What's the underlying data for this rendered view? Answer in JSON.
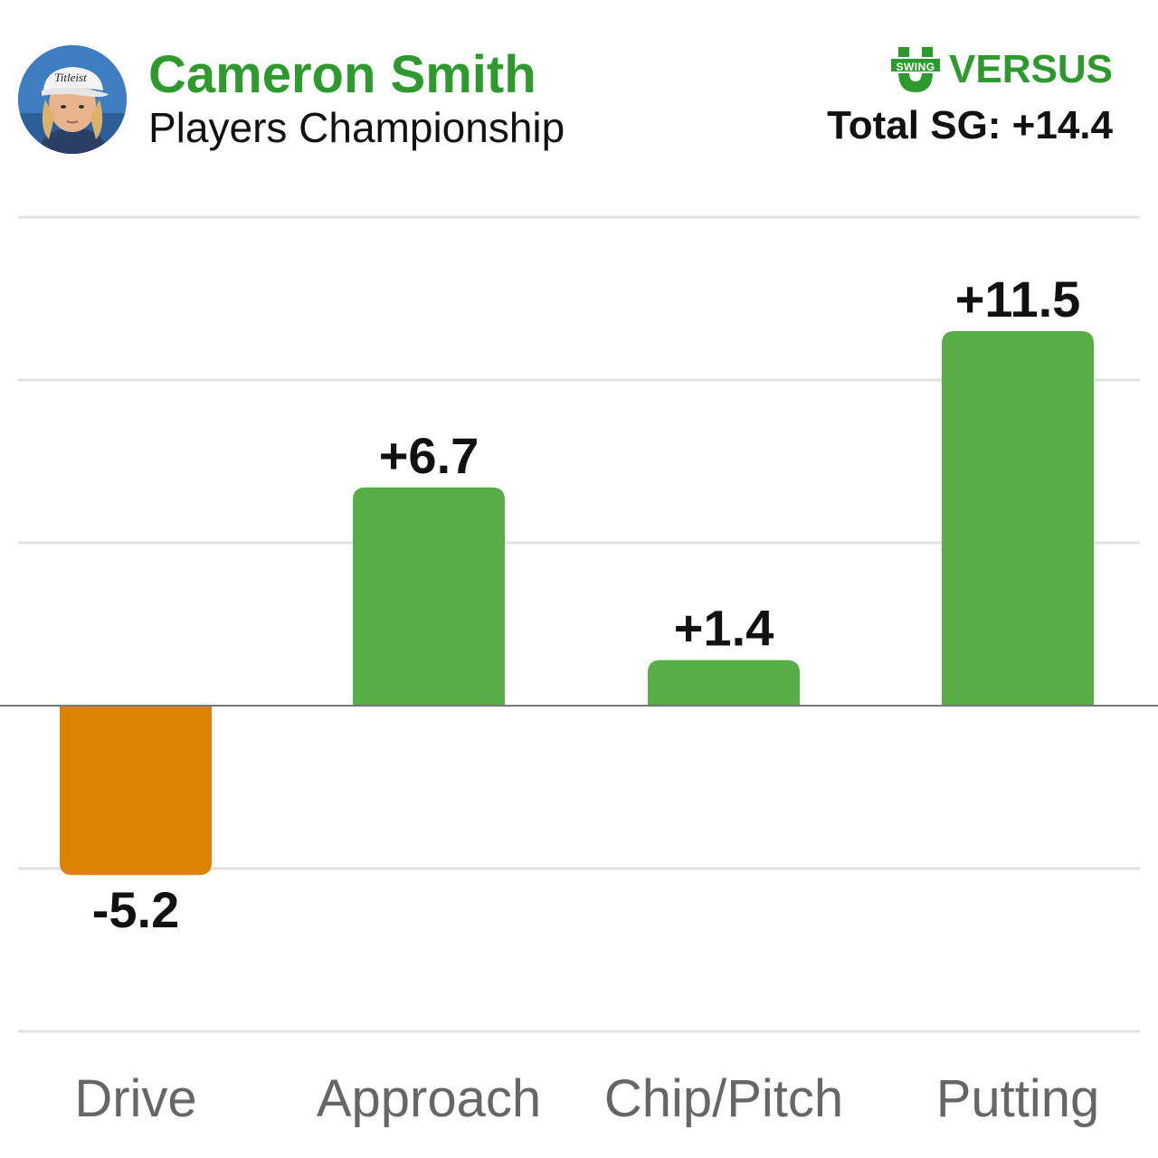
{
  "header": {
    "player_name": "Cameron Smith",
    "event_name": "Players Championship",
    "logo_badge": "SWING",
    "logo_text": "VERSUS",
    "total_label": "Total SG: +14.4"
  },
  "colors": {
    "name": "#2e9a2e",
    "positive": "#57ad46",
    "negative": "#dd8205",
    "grid": "#e2e2e2",
    "baseline": "#777777",
    "value_label": "#111111",
    "category_label": "#666666"
  },
  "chart_data": {
    "type": "bar",
    "title": "",
    "xlabel": "",
    "ylabel": "",
    "categories": [
      "Drive",
      "Approach",
      "Chip/Pitch",
      "Putting"
    ],
    "values": [
      -5.2,
      6.7,
      1.4,
      11.5
    ],
    "value_labels": [
      "-5.2",
      "+6.7",
      "+1.4",
      "+11.5"
    ],
    "ylim": [
      -10,
      15
    ],
    "gridlines": [
      -10,
      -5,
      5,
      10,
      15
    ],
    "grid": true,
    "legend": "none"
  }
}
